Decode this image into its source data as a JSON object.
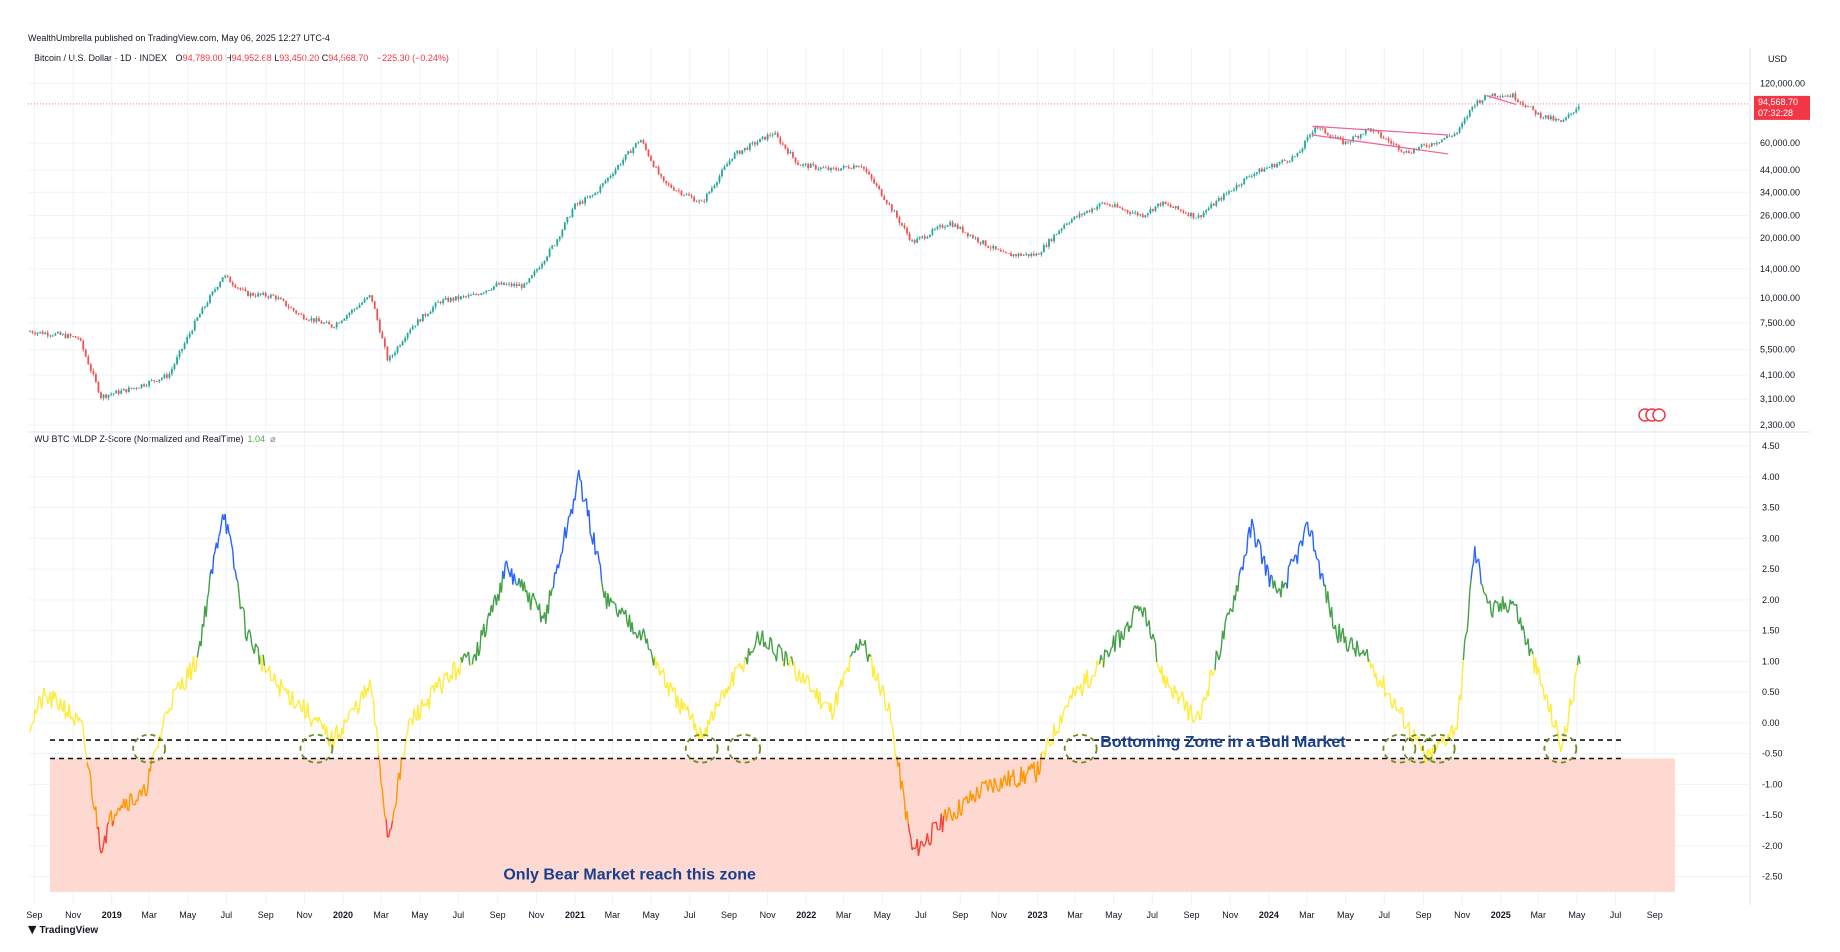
{
  "header": {
    "published": "WealthUmbrella published on TradingView.com, May 06, 2025 12:27 UTC-4",
    "symbol": "Bitcoin / U.S. Dollar · 1D · INDEX",
    "open_label": "O",
    "open": "94,789.00",
    "high_label": "H",
    "high": "94,952.68",
    "low_label": "L",
    "low": "93,450.20",
    "close_label": "C",
    "close": "94,568.70",
    "change": "−225.30 (−0.24%)"
  },
  "indicator": {
    "name": "WU BTC MLDP Z-Score (Normalized and RealTime)",
    "value": "1.04",
    "eye_icon": "⌀"
  },
  "price_axis": {
    "currency": "USD",
    "ticks": [
      "120,000.00",
      "60,000.00",
      "44,000.00",
      "34,000.00",
      "26,000.00",
      "20,000.00",
      "14,000.00",
      "10,000.00",
      "7,500.00",
      "5,500.00",
      "4,100.00",
      "3,100.00",
      "2,300.00"
    ],
    "last_price": "94,568.70",
    "countdown": "07:32:28"
  },
  "z_axis": {
    "ticks": [
      "4.50",
      "4.00",
      "3.50",
      "3.00",
      "2.50",
      "2.00",
      "1.50",
      "1.00",
      "0.50",
      "0.00",
      "-0.50",
      "-1.00",
      "-1.50",
      "-2.00",
      "-2.50"
    ]
  },
  "time_axis": {
    "labels": [
      "Sep",
      "Nov",
      "2019",
      "Mar",
      "May",
      "Jul",
      "Sep",
      "Nov",
      "2020",
      "Mar",
      "May",
      "Jul",
      "Sep",
      "Nov",
      "2021",
      "Mar",
      "May",
      "Jul",
      "Sep",
      "Nov",
      "2022",
      "Mar",
      "May",
      "Jul",
      "Sep",
      "Nov",
      "2023",
      "Mar",
      "May",
      "Jul",
      "Sep",
      "Nov",
      "2024",
      "Mar",
      "May",
      "Jul",
      "Sep",
      "Nov",
      "2025",
      "Mar",
      "May",
      "Jul",
      "Sep"
    ]
  },
  "annotations": {
    "bull_zone": "Bottoming Zone in a Bull Market",
    "bear_zone": "Only Bear Market reach this zone"
  },
  "footer": {
    "logo_text": "TradingView",
    "logo_icon": "tradingview-logo-icon"
  },
  "colors": {
    "up": "#26a69a",
    "down": "#ef5350",
    "price_badge": "#f23645",
    "z_blue": "#2962ff",
    "z_green": "#43a047",
    "z_yellow": "#ffeb3b",
    "z_orange": "#ff9800",
    "z_red": "#f44336",
    "bear_fill": "#fdd9d2",
    "circle": "#6b8e23"
  },
  "chart_data": [
    {
      "type": "line",
      "title": "Bitcoin / U.S. Dollar · 1D · INDEX",
      "yscale": "log",
      "ylim": [
        2300,
        140000
      ],
      "series": [
        {
          "x": [
            "2018-08-25",
            "2018-10-01",
            "2018-11-10",
            "2018-12-15",
            "2019-02-01",
            "2019-04-01",
            "2019-05-15",
            "2019-06-26",
            "2019-08-01",
            "2019-09-15",
            "2019-10-25",
            "2019-12-15",
            "2020-02-14",
            "2020-03-12",
            "2020-04-15",
            "2020-06-01",
            "2020-07-25",
            "2020-09-01",
            "2020-10-15",
            "2020-12-01",
            "2020-12-31",
            "2021-01-31",
            "2021-04-14",
            "2021-05-20",
            "2021-07-20",
            "2021-09-07",
            "2021-10-20",
            "2021-11-10",
            "2021-12-20",
            "2022-02-10",
            "2022-03-28",
            "2022-05-10",
            "2022-06-18",
            "2022-08-15",
            "2022-09-30",
            "2022-11-09",
            "2022-12-31",
            "2023-02-15",
            "2023-04-14",
            "2023-06-15",
            "2023-07-15",
            "2023-09-11",
            "2023-10-31",
            "2023-12-05",
            "2024-02-15",
            "2024-03-14",
            "2024-04-30",
            "2024-06-07",
            "2024-08-05",
            "2024-09-15",
            "2024-10-25",
            "2024-11-20",
            "2024-12-17",
            "2025-01-20",
            "2025-02-28",
            "2025-04-08",
            "2025-05-06"
          ],
          "values": [
            6800,
            6600,
            6300,
            3200,
            3500,
            4100,
            7800,
            13000,
            10500,
            10200,
            8200,
            7200,
            10300,
            4800,
            7000,
            9600,
            10300,
            11700,
            11500,
            19000,
            29000,
            33000,
            63000,
            38000,
            30000,
            52000,
            62000,
            67500,
            47000,
            44000,
            47000,
            30000,
            19000,
            24000,
            19500,
            16500,
            16500,
            24000,
            30000,
            26000,
            30000,
            25500,
            34500,
            42000,
            52000,
            73000,
            60000,
            71000,
            54000,
            60000,
            68000,
            95000,
            106000,
            104000,
            84000,
            76000,
            94568.7
          ]
        }
      ]
    },
    {
      "type": "line",
      "title": "WU BTC MLDP Z-Score (Normalized and RealTime)",
      "ylim": [
        -2.8,
        4.6
      ],
      "series": [
        {
          "x": [
            "2018-08-25",
            "2018-09-15",
            "2018-10-15",
            "2018-11-15",
            "2018-12-15",
            "2019-01-10",
            "2019-02-20",
            "2019-04-01",
            "2019-05-15",
            "2019-06-26",
            "2019-08-01",
            "2019-09-10",
            "2019-10-25",
            "2019-12-15",
            "2020-02-14",
            "2020-03-12",
            "2020-04-15",
            "2020-06-01",
            "2020-08-01",
            "2020-09-15",
            "2020-11-15",
            "2021-01-08",
            "2021-02-20",
            "2021-04-14",
            "2021-06-01",
            "2021-07-20",
            "2021-09-01",
            "2021-10-20",
            "2021-12-20",
            "2022-02-10",
            "2022-03-28",
            "2022-05-10",
            "2022-06-18",
            "2022-08-15",
            "2022-10-15",
            "2022-12-31",
            "2023-02-15",
            "2023-04-14",
            "2023-06-15",
            "2023-07-15",
            "2023-09-11",
            "2023-11-01",
            "2023-12-05",
            "2024-01-15",
            "2024-03-05",
            "2024-04-15",
            "2024-06-07",
            "2024-08-05",
            "2024-09-06",
            "2024-10-25",
            "2024-11-20",
            "2024-12-17",
            "2025-01-20",
            "2025-02-28",
            "2025-04-08",
            "2025-05-06"
          ],
          "values": [
            0.0,
            0.4,
            0.3,
            -0.1,
            -2.0,
            -1.3,
            -1.2,
            0.3,
            1.0,
            3.5,
            1.5,
            0.7,
            0.3,
            -0.3,
            0.6,
            -1.9,
            0.0,
            0.6,
            1.2,
            2.5,
            1.7,
            4.0,
            2.0,
            1.5,
            0.5,
            -0.2,
            0.6,
            1.4,
            0.8,
            0.2,
            1.4,
            0.3,
            -2.1,
            -1.5,
            -1.0,
            -0.8,
            0.3,
            1.0,
            1.9,
            0.8,
            0.0,
            1.8,
            3.2,
            2.0,
            3.2,
            1.5,
            1.0,
            0.0,
            -0.6,
            0.0,
            2.8,
            1.8,
            2.0,
            0.8,
            -0.4,
            1.04
          ]
        }
      ]
    }
  ]
}
